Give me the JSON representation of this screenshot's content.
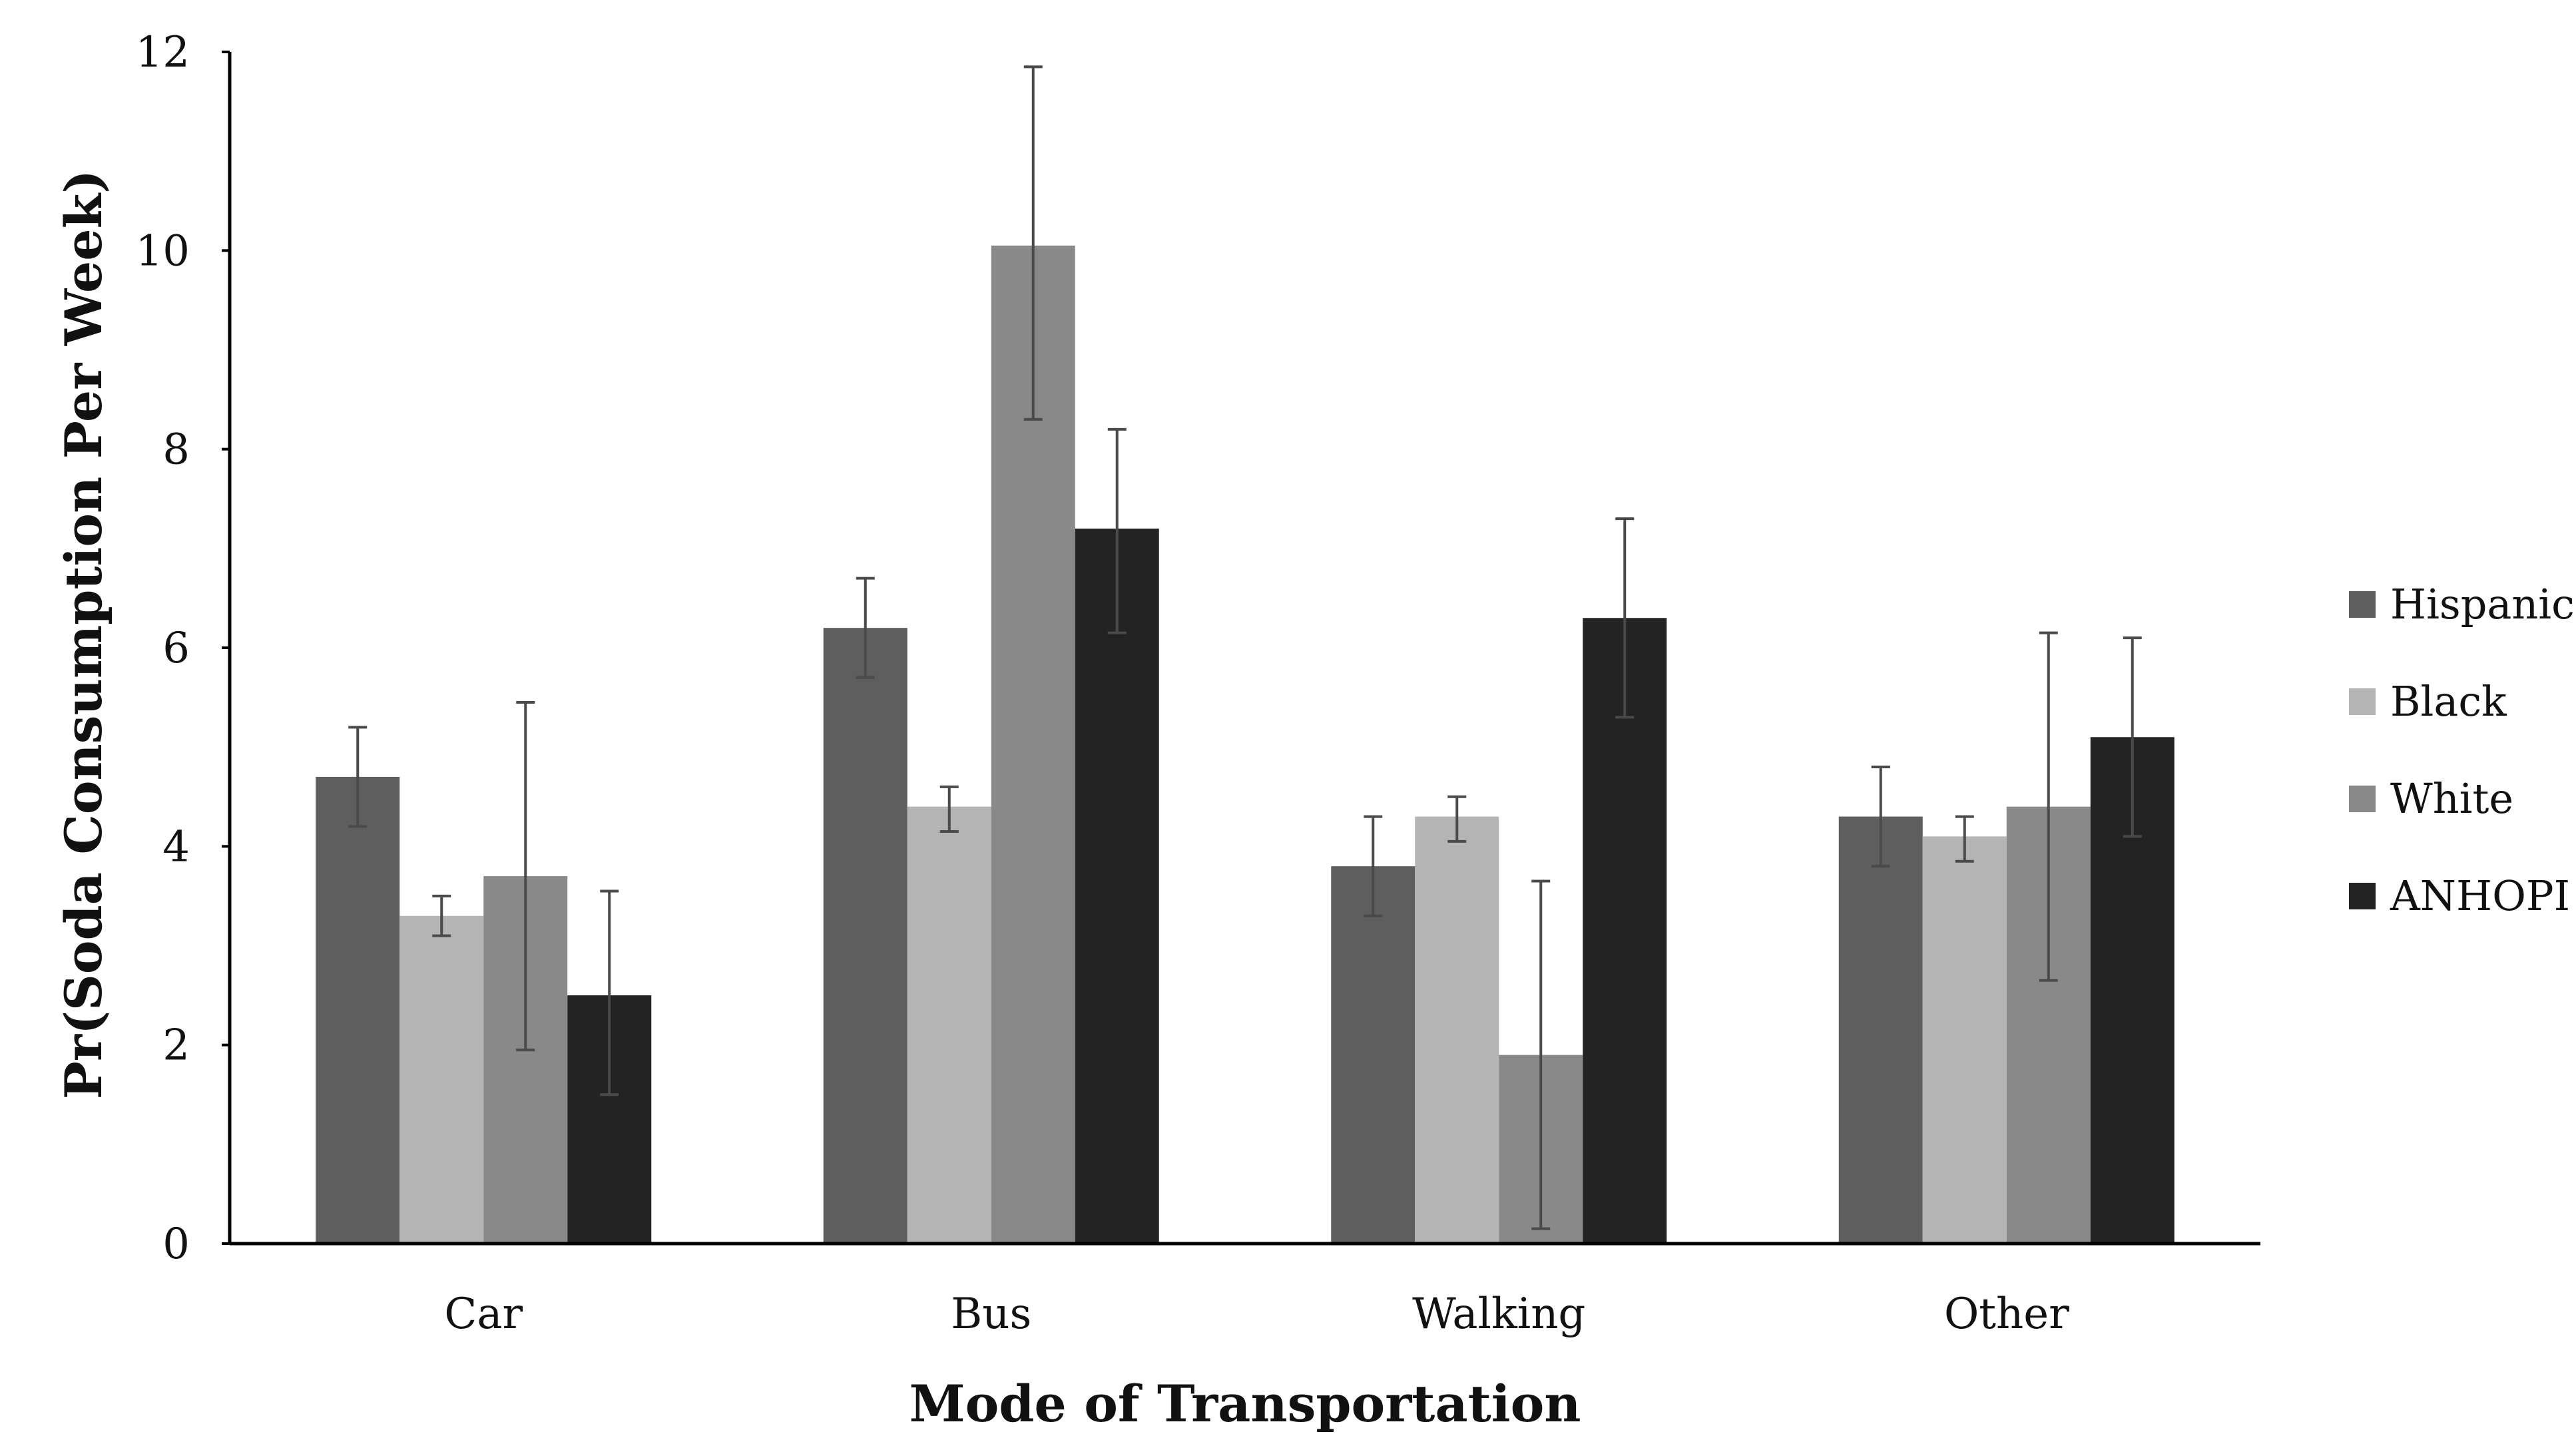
{
  "chart_data": {
    "type": "bar",
    "title": "",
    "xlabel": "Mode of Transportation",
    "ylabel": "Pr(Soda Consumption Per Week)",
    "ylim": [
      0,
      12
    ],
    "yticks": [
      0,
      2,
      4,
      6,
      8,
      10,
      12
    ],
    "ytick_labels": [
      "0",
      "2",
      "4",
      "6",
      "8",
      "10",
      "12"
    ],
    "grid": false,
    "legend_position": "right",
    "categories": [
      "Car",
      "Bus",
      "Walking",
      "Other"
    ],
    "series": [
      {
        "name": "Hispanic",
        "color": "#5e5e5e",
        "values": [
          4.7,
          6.2,
          3.8,
          4.3
        ],
        "err_low": [
          4.2,
          5.7,
          3.3,
          3.8
        ],
        "err_high": [
          5.2,
          6.7,
          4.3,
          4.8
        ]
      },
      {
        "name": "Black",
        "color": "#b4b4b4",
        "values": [
          3.3,
          4.4,
          4.3,
          4.1
        ],
        "err_low": [
          3.1,
          4.15,
          4.05,
          3.85
        ],
        "err_high": [
          3.5,
          4.6,
          4.5,
          4.3
        ]
      },
      {
        "name": "White",
        "color": "#898989",
        "values": [
          3.7,
          10.05,
          1.9,
          4.4
        ],
        "err_low": [
          1.95,
          8.3,
          0.15,
          2.65
        ],
        "err_high": [
          5.45,
          11.85,
          3.65,
          6.15
        ]
      },
      {
        "name": "ANHOPI",
        "color": "#232323",
        "values": [
          2.5,
          7.2,
          6.3,
          5.1
        ],
        "err_low": [
          1.5,
          6.15,
          5.3,
          4.1
        ],
        "err_high": [
          3.55,
          8.2,
          7.3,
          6.1
        ]
      }
    ]
  }
}
